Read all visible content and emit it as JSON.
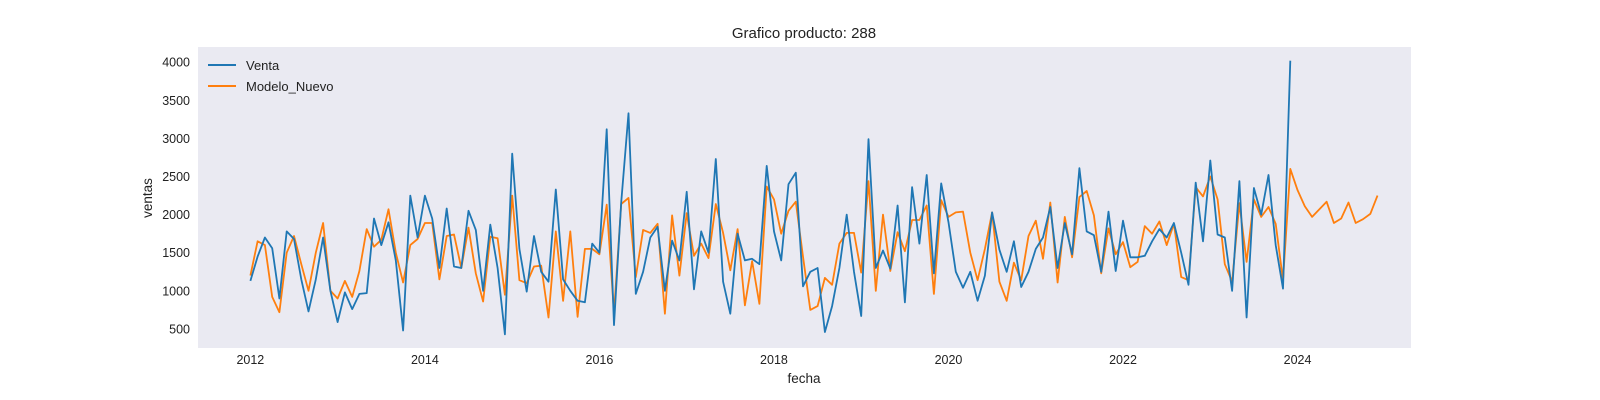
{
  "chart_data": {
    "type": "line",
    "title": "Grafico producto: 288",
    "xlabel": "fecha",
    "ylabel": "ventas",
    "xlim": [
      2011.4,
      2025.3
    ],
    "ylim": [
      250,
      4200
    ],
    "x_ticks": [
      2012,
      2014,
      2016,
      2018,
      2020,
      2022,
      2024
    ],
    "x_tick_labels": [
      "2012",
      "2014",
      "2016",
      "2018",
      "2020",
      "2022",
      "2024"
    ],
    "y_ticks": [
      500,
      1000,
      1500,
      2000,
      2500,
      3000,
      3500,
      4000
    ],
    "y_tick_labels": [
      "500",
      "1000",
      "1500",
      "2000",
      "2500",
      "3000",
      "3500",
      "4000"
    ],
    "grid": false,
    "legend_position": "top-left",
    "colors": {
      "background": "#eaeaf2",
      "venta": "#1f77b4",
      "modelo": "#ff7f0e"
    },
    "x_start": "2012-01",
    "x_step": "month",
    "series": [
      {
        "name": "Venta",
        "color": "#1f77b4",
        "values": [
          1130,
          1450,
          1700,
          1560,
          900,
          1780,
          1680,
          1150,
          730,
          1150,
          1700,
          1000,
          590,
          980,
          760,
          960,
          970,
          1950,
          1600,
          1900,
          1400,
          480,
          2250,
          1700,
          2250,
          1950,
          1300,
          2080,
          1320,
          1300,
          2050,
          1800,
          1000,
          1870,
          1300,
          430,
          2800,
          1550,
          990,
          1720,
          1250,
          1120,
          2330,
          1150,
          1000,
          870,
          850,
          1620,
          1500,
          3120,
          550,
          2160,
          3330,
          960,
          1250,
          1700,
          1840,
          1000,
          1660,
          1400,
          2300,
          1020,
          1780,
          1500,
          2730,
          1120,
          700,
          1750,
          1400,
          1420,
          1350,
          2640,
          1780,
          1400,
          2400,
          2550,
          1060,
          1250,
          1300,
          460,
          800,
          1300,
          2000,
          1250,
          670,
          2990,
          1300,
          1530,
          1290,
          2120,
          850,
          2360,
          1620,
          2520,
          1230,
          2410,
          1900,
          1250,
          1040,
          1250,
          870,
          1200,
          2030,
          1540,
          1250,
          1650,
          1050,
          1250,
          1550,
          1700,
          2100,
          1300,
          1890,
          1480,
          2610,
          1780,
          1730,
          1250,
          2040,
          1260,
          1920,
          1440,
          1440,
          1460,
          1650,
          1810,
          1700,
          1890,
          1500,
          1080,
          2420,
          1650,
          2710,
          1740,
          1700,
          1000,
          2440,
          650,
          2350,
          2000,
          2520,
          1600,
          1030,
          4020
        ],
        "forecast_values": []
      },
      {
        "name": "Modelo_Nuevo",
        "color": "#ff7f0e",
        "values": [
          1200,
          1650,
          1600,
          920,
          720,
          1500,
          1720,
          1350,
          1000,
          1500,
          1890,
          1000,
          900,
          1130,
          920,
          1260,
          1810,
          1580,
          1670,
          2070,
          1500,
          1110,
          1600,
          1680,
          1890,
          1890,
          1150,
          1720,
          1740,
          1300,
          1830,
          1230,
          860,
          1710,
          1690,
          950,
          2250,
          1140,
          1100,
          1320,
          1330,
          650,
          1780,
          870,
          1780,
          660,
          1550,
          1550,
          1480,
          2130,
          710,
          2140,
          2220,
          1180,
          1800,
          1760,
          1880,
          700,
          1990,
          1200,
          2020,
          1460,
          1620,
          1430,
          2140,
          1760,
          1270,
          1810,
          810,
          1390,
          830,
          2370,
          2200,
          1750,
          2050,
          2170,
          1450,
          750,
          800,
          1170,
          1080,
          1620,
          1760,
          1760,
          1240,
          2440,
          1000,
          2000,
          1260,
          1770,
          1520,
          1930,
          1930,
          2120,
          960,
          2190,
          1970,
          2030,
          2040,
          1500,
          1140,
          1550,
          2030,
          1120,
          870,
          1370,
          1140,
          1720,
          1920,
          1420,
          2160,
          1110,
          1970,
          1440,
          2230,
          2310,
          1990,
          1230,
          1820,
          1480,
          1640,
          1310,
          1380,
          1850,
          1750,
          1910,
          1600,
          1880,
          1180,
          1140,
          2360,
          2240,
          2500,
          2200,
          1350,
          1120,
          2150,
          1380,
          2200,
          1970,
          2100,
          1880,
          1140
        ],
        "forecast_values": [
          2600,
          2320,
          2110,
          1970,
          2070,
          2170,
          1890,
          1950,
          2160,
          1890,
          1940,
          2010,
          2250
        ]
      }
    ]
  }
}
